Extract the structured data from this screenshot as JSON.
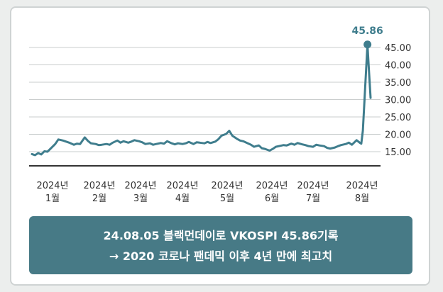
{
  "chart_data": {
    "type": "line",
    "title": "",
    "xlabel": "",
    "ylabel": "",
    "ylim": [
      12,
      47
    ],
    "yticks": [
      15,
      20,
      25,
      30,
      35,
      40,
      45
    ],
    "ytick_labels": [
      "15.00",
      "20.00",
      "25.00",
      "30.00",
      "35.00",
      "40.00",
      "45.00"
    ],
    "grid": true,
    "line_color": "#3f7d8d",
    "months": [
      {
        "year": "2024년",
        "month": "1월",
        "date": "2024-01-15"
      },
      {
        "year": "2024년",
        "month": "2월",
        "date": "2024-02-15"
      },
      {
        "year": "2024년",
        "month": "3월",
        "date": "2024-03-15"
      },
      {
        "year": "2024년",
        "month": "4월",
        "date": "2024-04-15"
      },
      {
        "year": "2024년",
        "month": "5월",
        "date": "2024-05-15"
      },
      {
        "year": "2024년",
        "month": "6월",
        "date": "2024-06-15"
      },
      {
        "year": "2024년",
        "month": "7월",
        "date": "2024-07-15"
      },
      {
        "year": "2024년",
        "month": "8월",
        "date": "2024-08-15"
      }
    ],
    "series": [
      {
        "x": [
          "2024-01-02",
          "2024-01-04",
          "2024-01-06",
          "2024-01-08",
          "2024-01-10",
          "2024-01-12",
          "2024-01-15",
          "2024-01-17",
          "2024-01-19",
          "2024-01-22",
          "2024-01-24",
          "2024-01-26",
          "2024-01-29",
          "2024-01-31",
          "2024-02-02",
          "2024-02-05",
          "2024-02-07",
          "2024-02-09",
          "2024-02-12",
          "2024-02-14",
          "2024-02-16",
          "2024-02-19",
          "2024-02-21",
          "2024-02-23",
          "2024-02-26",
          "2024-02-28",
          "2024-03-01",
          "2024-03-04",
          "2024-03-06",
          "2024-03-08",
          "2024-03-11",
          "2024-03-13",
          "2024-03-15",
          "2024-03-18",
          "2024-03-20",
          "2024-03-22",
          "2024-03-25",
          "2024-03-27",
          "2024-03-29",
          "2024-04-01",
          "2024-04-03",
          "2024-04-05",
          "2024-04-08",
          "2024-04-10",
          "2024-04-12",
          "2024-04-15",
          "2024-04-17",
          "2024-04-19",
          "2024-04-22",
          "2024-04-24",
          "2024-04-26",
          "2024-04-29",
          "2024-05-01",
          "2024-05-03",
          "2024-05-06",
          "2024-05-08",
          "2024-05-10",
          "2024-05-13",
          "2024-05-15",
          "2024-05-17",
          "2024-05-20",
          "2024-05-22",
          "2024-05-24",
          "2024-05-27",
          "2024-05-29",
          "2024-05-31",
          "2024-06-03",
          "2024-06-05",
          "2024-06-07",
          "2024-06-10",
          "2024-06-12",
          "2024-06-14",
          "2024-06-17",
          "2024-06-19",
          "2024-06-21",
          "2024-06-24",
          "2024-06-26",
          "2024-06-28",
          "2024-07-01",
          "2024-07-03",
          "2024-07-05",
          "2024-07-08",
          "2024-07-10",
          "2024-07-12",
          "2024-07-15",
          "2024-07-17",
          "2024-07-19",
          "2024-07-22",
          "2024-07-24",
          "2024-07-26",
          "2024-07-29",
          "2024-07-31",
          "2024-08-01",
          "2024-08-02",
          "2024-08-05",
          "2024-08-06",
          "2024-08-07"
        ],
        "values": [
          14.3,
          14.0,
          14.6,
          14.2,
          15.1,
          15.0,
          16.3,
          17.2,
          18.5,
          18.2,
          17.9,
          17.6,
          17.0,
          17.3,
          17.2,
          19.1,
          18.1,
          17.4,
          17.2,
          16.9,
          17.0,
          17.2,
          17.0,
          17.6,
          18.2,
          17.6,
          18.0,
          17.6,
          17.9,
          18.3,
          18.0,
          17.7,
          17.2,
          17.4,
          17.0,
          17.2,
          17.5,
          17.3,
          18.0,
          17.4,
          17.1,
          17.4,
          17.2,
          17.4,
          17.8,
          17.2,
          17.7,
          17.6,
          17.4,
          17.8,
          17.5,
          17.9,
          18.6,
          19.6,
          20.1,
          21.0,
          19.6,
          18.7,
          18.2,
          18.0,
          17.4,
          17.0,
          16.4,
          16.8,
          16.0,
          15.8,
          15.3,
          15.8,
          16.4,
          16.7,
          16.9,
          16.8,
          17.3,
          17.0,
          17.5,
          17.1,
          16.9,
          16.6,
          16.4,
          17.0,
          16.8,
          16.6,
          16.1,
          15.9,
          16.2,
          16.6,
          16.9,
          17.2,
          17.6,
          17.0,
          18.3,
          17.6,
          17.3,
          21.0,
          45.86,
          38.0,
          30.5
        ]
      }
    ],
    "annotations": [
      {
        "label": "45.86",
        "x": "2024-08-05",
        "y": 45.86
      }
    ]
  },
  "caption": {
    "line1": "24.08.05 블랙먼데이로 VKOSPI 45.86기록",
    "line2": "→  2020 코로나 팬데믹 이후 4년 만에 최고치"
  }
}
